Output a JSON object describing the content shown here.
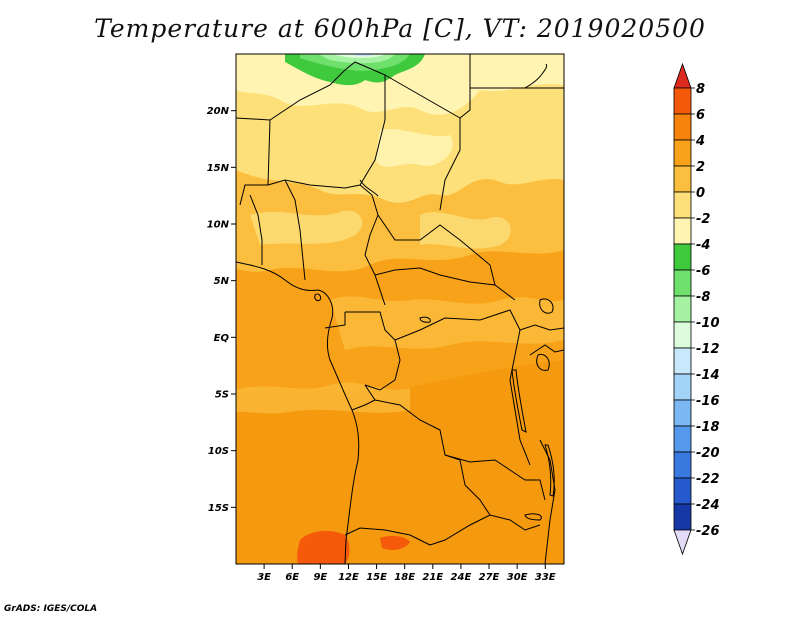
{
  "title": "Temperature at 600hPa [C], VT: 2019020500",
  "credit": "GrADS: IGES/COLA",
  "map": {
    "lat_ticks": [
      {
        "label": "20N",
        "value": 20
      },
      {
        "label": "15N",
        "value": 15
      },
      {
        "label": "10N",
        "value": 10
      },
      {
        "label": "5N",
        "value": 5
      },
      {
        "label": "EQ",
        "value": 0
      },
      {
        "label": "5S",
        "value": -5
      },
      {
        "label": "10S",
        "value": -10
      },
      {
        "label": "15S",
        "value": -15
      }
    ],
    "lon_ticks": [
      {
        "label": "3E",
        "value": 3
      },
      {
        "label": "6E",
        "value": 6
      },
      {
        "label": "9E",
        "value": 9
      },
      {
        "label": "12E",
        "value": 12
      },
      {
        "label": "15E",
        "value": 15
      },
      {
        "label": "18E",
        "value": 18
      },
      {
        "label": "21E",
        "value": 21
      },
      {
        "label": "24E",
        "value": 24
      },
      {
        "label": "27E",
        "value": 27
      },
      {
        "label": "30E",
        "value": 30
      },
      {
        "label": "33E",
        "value": 33
      }
    ],
    "lat_range": [
      -20,
      25
    ],
    "lon_range": [
      0,
      35
    ]
  },
  "colorbar": {
    "levels": [
      "8",
      "6",
      "4",
      "2",
      "0",
      "-2",
      "-4",
      "-6",
      "-8",
      "-10",
      "-12",
      "-14",
      "-16",
      "-18",
      "-20",
      "-22",
      "-24",
      "-26"
    ],
    "colors": [
      "#e6300f",
      "#f55a0b",
      "#f7820c",
      "#f8a21a",
      "#fbbe3e",
      "#fde07a",
      "#fff4b2",
      "#3fc93d",
      "#6ee06b",
      "#a5f2a2",
      "#dcfcdc",
      "#c8e8fb",
      "#a2d3f8",
      "#7bb8f3",
      "#5599ec",
      "#3a7ae0",
      "#2559cc",
      "#1538a6",
      "#0a1e7d",
      "#050d53"
    ],
    "top_color": "#dc2a1e",
    "bottom_color": "#e3dcf8"
  }
}
